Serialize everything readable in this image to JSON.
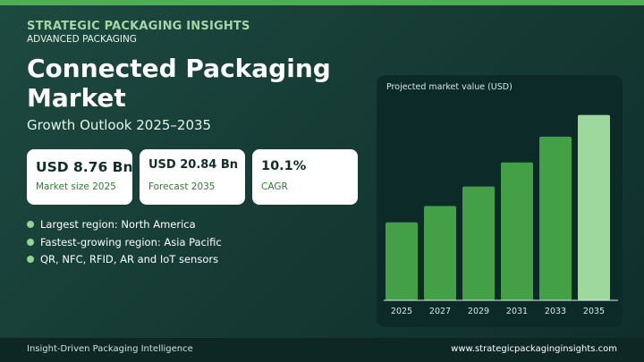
{
  "header": {
    "brand": "STRATEGIC PACKAGING INSIGHTS",
    "category": "ADVANCED PACKAGING",
    "title": "Connected Packaging Market",
    "subtitle": "Growth Outlook 2025–2035"
  },
  "stats": [
    {
      "value": "USD 8.76 Bn",
      "label": "Market size 2025"
    },
    {
      "value": "USD 20.84 Bn",
      "label": "Forecast 2035"
    },
    {
      "value": "10.1%",
      "label": "CAGR"
    }
  ],
  "bullets": [
    "Largest region: North America",
    "Fastest-growing region: Asia Pacific",
    "QR, NFC, RFID, AR and IoT sensors"
  ],
  "chart_data": {
    "type": "bar",
    "title": "Projected market value (USD)",
    "categories": [
      "2025",
      "2027",
      "2029",
      "2031",
      "2033",
      "2035"
    ],
    "values": [
      8.76,
      10.6,
      12.8,
      15.5,
      18.4,
      20.84
    ],
    "ylim": [
      0,
      21.5
    ],
    "grid": false,
    "colors": [
      "#43a047",
      "#43a047",
      "#43a047",
      "#43a047",
      "#43a047",
      "#9ed89c"
    ],
    "axis_color": "#e0efe9"
  },
  "footer": {
    "left": "Insight-Driven Packaging Intelligence",
    "right": "www.strategicpackaginginsights.com"
  },
  "colors": {
    "accent": "#4caf50",
    "background": "#163c35",
    "card": "#ffffff",
    "bullet_dot": "#8fd694"
  }
}
